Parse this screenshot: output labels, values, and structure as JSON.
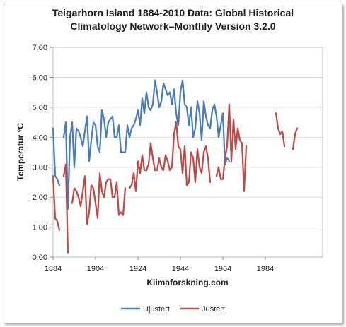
{
  "chart_data": {
    "type": "line",
    "title": "Teigarhorn Island 1884-2010  Data: Global Historical",
    "subtitle": "Climatology Network–Monthly Version 3.2.0",
    "xlabel": "Klimaforskning.com",
    "ylabel": "Temperatur °C",
    "xlim": [
      1884,
      2011
    ],
    "ylim": [
      0,
      7
    ],
    "x_ticks": [
      "1884",
      "1904",
      "1924",
      "1944",
      "1964",
      "1984"
    ],
    "y_ticks": [
      "0,00",
      "1,00",
      "2,00",
      "3,00",
      "4,00",
      "5,00",
      "6,00",
      "7,00"
    ],
    "grid": true,
    "legend_position": "bottom",
    "series": [
      {
        "name": "Ujustert",
        "color": "#4a7ebb",
        "points": [
          [
            1884,
            4.3
          ],
          [
            1885,
            2.7
          ],
          [
            1886,
            2.6
          ],
          [
            1887,
            2.4
          ],
          [
            1889,
            4.0
          ],
          [
            1890,
            4.5
          ],
          [
            1891,
            1.6
          ],
          [
            1892,
            4.0
          ],
          [
            1893,
            4.5
          ],
          [
            1894,
            3.0
          ],
          [
            1895,
            4.3
          ],
          [
            1896,
            4.2
          ],
          [
            1897,
            4.0
          ],
          [
            1898,
            3.7
          ],
          [
            1899,
            4.2
          ],
          [
            1900,
            4.7
          ],
          [
            1901,
            3.2
          ],
          [
            1902,
            3.9
          ],
          [
            1903,
            4.5
          ],
          [
            1904,
            4.4
          ],
          [
            1905,
            3.7
          ],
          [
            1906,
            3.5
          ],
          [
            1907,
            4.9
          ],
          [
            1908,
            4.6
          ],
          [
            1909,
            4.0
          ],
          [
            1910,
            4.5
          ],
          [
            1911,
            4.6
          ],
          [
            1912,
            4.7
          ],
          [
            1913,
            4.0
          ],
          [
            1914,
            4.0
          ],
          [
            1915,
            4.4
          ],
          [
            1916,
            3.5
          ],
          [
            1917,
            3.5
          ],
          [
            1918,
            3.5
          ],
          [
            1919,
            4.4
          ],
          [
            1920,
            4.0
          ],
          [
            1921,
            4.3
          ],
          [
            1922,
            4.4
          ],
          [
            1923,
            4.6
          ],
          [
            1924,
            4.9
          ],
          [
            1925,
            4.4
          ],
          [
            1926,
            5.3
          ],
          [
            1927,
            4.8
          ],
          [
            1928,
            5.5
          ],
          [
            1929,
            5.0
          ],
          [
            1930,
            4.9
          ],
          [
            1931,
            5.1
          ],
          [
            1932,
            5.9
          ],
          [
            1933,
            5.5
          ],
          [
            1934,
            5.0
          ],
          [
            1935,
            5.2
          ],
          [
            1936,
            5.8
          ],
          [
            1937,
            5.6
          ],
          [
            1938,
            5.4
          ],
          [
            1939,
            5.5
          ],
          [
            1940,
            5.1
          ],
          [
            1941,
            5.6
          ],
          [
            1942,
            4.8
          ],
          [
            1943,
            4.4
          ],
          [
            1944,
            5.5
          ],
          [
            1945,
            5.9
          ],
          [
            1946,
            5.1
          ],
          [
            1947,
            5.0
          ],
          [
            1948,
            4.4
          ],
          [
            1949,
            5.0
          ],
          [
            1950,
            4.0
          ],
          [
            1951,
            4.3
          ],
          [
            1952,
            5.2
          ],
          [
            1953,
            4.8
          ],
          [
            1954,
            3.9
          ],
          [
            1955,
            5.2
          ],
          [
            1956,
            4.7
          ],
          [
            1957,
            4.4
          ],
          [
            1958,
            4.3
          ],
          [
            1959,
            4.9
          ],
          [
            1960,
            5.1
          ],
          [
            1961,
            4.7
          ],
          [
            1962,
            4.0
          ],
          [
            1963,
            4.4
          ],
          [
            1964,
            4.8
          ],
          [
            1965,
            3.1
          ],
          [
            1966,
            3.3
          ],
          [
            1967,
            3.2
          ]
        ]
      },
      {
        "name": "Justert",
        "color": "#be4b48",
        "points": [
          [
            1884,
            2.7
          ],
          [
            1885,
            1.3
          ],
          [
            1886,
            1.2
          ],
          [
            1887,
            0.9
          ],
          [
            1889,
            2.7
          ],
          [
            1890,
            3.1
          ],
          [
            1891,
            0.15
          ],
          [
            1893,
            1.8
          ],
          [
            1894,
            2.3
          ],
          [
            1895,
            2.2
          ],
          [
            1896,
            2.0
          ],
          [
            1897,
            1.7
          ],
          [
            1898,
            2.2
          ],
          [
            1899,
            2.7
          ],
          [
            1900,
            1.1
          ],
          [
            1901,
            1.5
          ],
          [
            1902,
            2.4
          ],
          [
            1903,
            2.3
          ],
          [
            1904,
            1.8
          ],
          [
            1905,
            1.3
          ],
          [
            1906,
            2.8
          ],
          [
            1907,
            2.2
          ],
          [
            1908,
            2.0
          ],
          [
            1909,
            2.5
          ],
          [
            1910,
            2.6
          ],
          [
            1911,
            2.6
          ],
          [
            1912,
            2.0
          ],
          [
            1913,
            2.0
          ],
          [
            1914,
            2.5
          ],
          [
            1915,
            1.4
          ],
          [
            1916,
            1.5
          ],
          [
            1917,
            1.4
          ],
          [
            1918,
            2.3
          ],
          [
            1920,
            2.3
          ],
          [
            1921,
            2.4
          ],
          [
            1922,
            2.8
          ],
          [
            1923,
            2.2
          ],
          [
            1924,
            3.2
          ],
          [
            1925,
            2.8
          ],
          [
            1926,
            3.4
          ],
          [
            1927,
            2.9
          ],
          [
            1928,
            2.9
          ],
          [
            1929,
            3.1
          ],
          [
            1930,
            3.8
          ],
          [
            1931,
            3.3
          ],
          [
            1932,
            2.9
          ],
          [
            1933,
            2.9
          ],
          [
            1934,
            3.3
          ],
          [
            1935,
            3.0
          ],
          [
            1936,
            2.9
          ],
          [
            1937,
            3.4
          ],
          [
            1938,
            3.2
          ],
          [
            1939,
            2.9
          ],
          [
            1940,
            3.0
          ],
          [
            1941,
            4.1
          ],
          [
            1942,
            4.5
          ],
          [
            1943,
            3.7
          ],
          [
            1944,
            3.6
          ],
          [
            1945,
            2.8
          ],
          [
            1946,
            3.7
          ],
          [
            1947,
            2.4
          ],
          [
            1948,
            2.5
          ],
          [
            1949,
            3.5
          ],
          [
            1950,
            3.3
          ],
          [
            1951,
            2.5
          ],
          [
            1952,
            3.6
          ],
          [
            1953,
            3.0
          ],
          [
            1954,
            2.8
          ],
          [
            1955,
            3.5
          ],
          [
            1956,
            3.7
          ],
          [
            1957,
            3.3
          ],
          [
            1958,
            2.5
          ],
          [
            1961,
            2.7
          ],
          [
            1962,
            3.0
          ],
          [
            1963,
            2.6
          ],
          [
            1964,
            2.6
          ],
          [
            1965,
            3.3
          ],
          [
            1966,
            3.7
          ],
          [
            1967,
            5.1
          ],
          [
            1968,
            3.2
          ],
          [
            1969,
            4.6
          ],
          [
            1970,
            3.6
          ],
          [
            1971,
            4.3
          ],
          [
            1972,
            3.9
          ],
          [
            1973,
            3.8
          ],
          [
            1974,
            2.2
          ],
          [
            1975,
            3.7
          ],
          [
            1989,
            4.8
          ],
          [
            1990,
            4.3
          ],
          [
            1991,
            4.1
          ],
          [
            1992,
            4.2
          ],
          [
            1993,
            3.7
          ],
          [
            1997,
            3.6
          ],
          [
            1998,
            4.1
          ],
          [
            1999,
            4.3
          ]
        ]
      }
    ]
  }
}
